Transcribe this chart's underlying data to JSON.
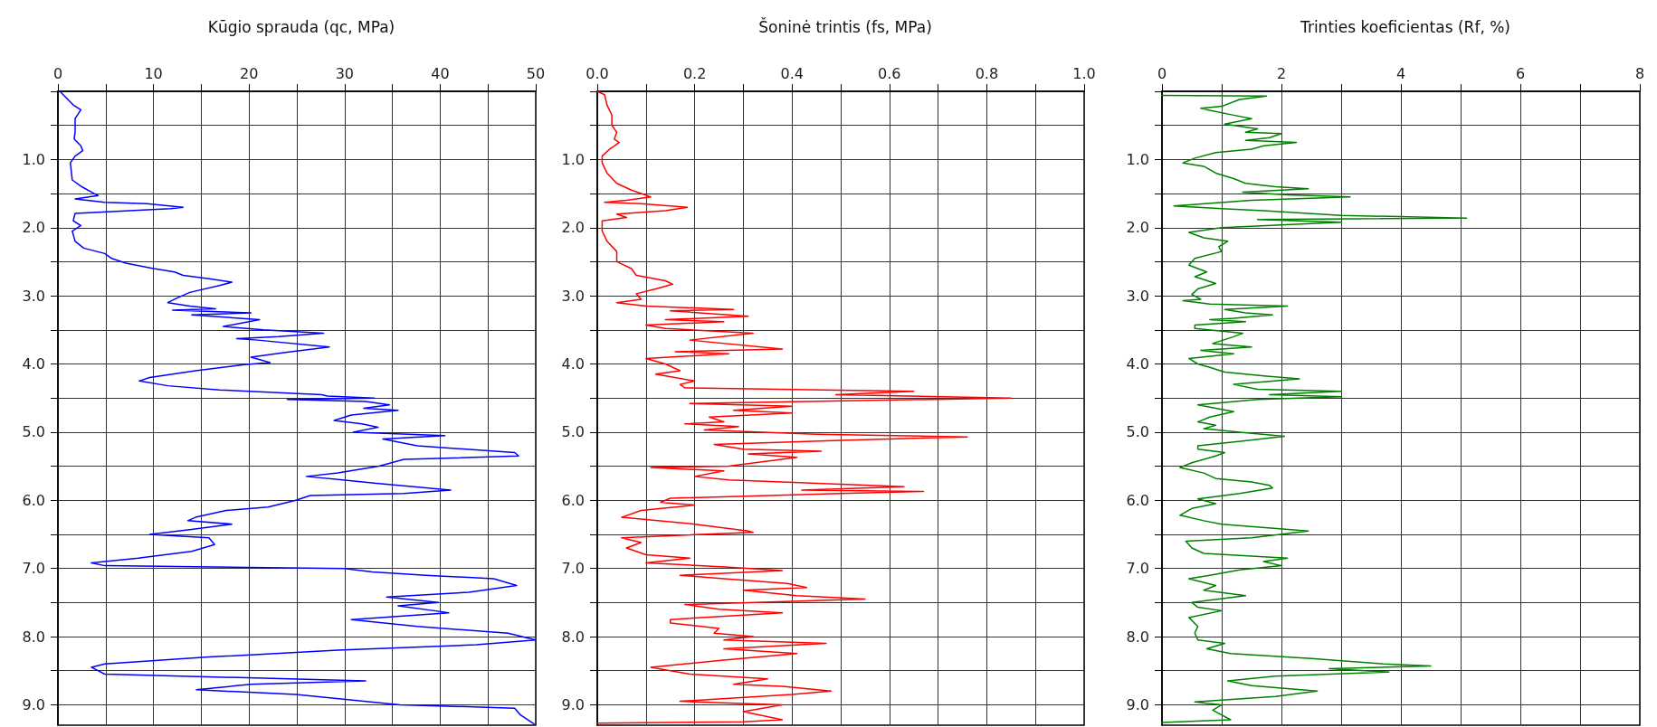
{
  "chart_data": [
    {
      "type": "line",
      "title": "Kūgio sprauda (qc, MPa)",
      "xlim": [
        0,
        50
      ],
      "xticks": [
        0,
        {
          "value": 5,
          "label": null
        },
        10,
        {
          "value": 15,
          "label": null
        },
        20,
        {
          "value": 25,
          "label": null
        },
        30,
        {
          "value": 35,
          "label": null
        },
        40,
        {
          "value": 45,
          "label": null
        },
        50
      ],
      "ylim": [
        9.3,
        0
      ],
      "yticks": [
        {
          "value": 0,
          "label": null
        },
        {
          "value": 0.5,
          "label": null
        },
        {
          "value": 1,
          "label": "1.0"
        },
        {
          "value": 1.5,
          "label": null
        },
        {
          "value": 2,
          "label": "2.0"
        },
        {
          "value": 2.5,
          "label": null
        },
        {
          "value": 3,
          "label": "3.0"
        },
        {
          "value": 3.5,
          "label": null
        },
        {
          "value": 4,
          "label": "4.0"
        },
        {
          "value": 4.5,
          "label": null
        },
        {
          "value": 5,
          "label": "5.0"
        },
        {
          "value": 5.5,
          "label": null
        },
        {
          "value": 6,
          "label": "6.0"
        },
        {
          "value": 6.5,
          "label": null
        },
        {
          "value": 7,
          "label": "7.0"
        },
        {
          "value": 7.5,
          "label": null
        },
        {
          "value": 8,
          "label": "8.0"
        },
        {
          "value": 8.5,
          "label": null
        },
        {
          "value": 9,
          "label": "9.0"
        }
      ],
      "grid": true,
      "marker": "none",
      "line_style": "solid",
      "series": [
        {
          "color": "#0000ff",
          "x": [
            0.2,
            0.9,
            1.6,
            2.4,
            1.8,
            1.8,
            1.7,
            2.4,
            2.6,
            1.8,
            1.3,
            1.5,
            2.5,
            3.8,
            4.2,
            1.8,
            4.9,
            9.3,
            13.1,
            11.8,
            1.8,
            1.6,
            2.4,
            1.5,
            1.8,
            2.7,
            4.9,
            5.6,
            7.1,
            10,
            12.2,
            13.1,
            15.8,
            18.2,
            16.9,
            13.8,
            12.2,
            11.5,
            13.8,
            16.5,
            12,
            20.2,
            14,
            21.1,
            17.3,
            21.5,
            27.8,
            23.1,
            18.7,
            20.9,
            28.4,
            23.8,
            20.2,
            22.2,
            19.5,
            14.4,
            9.6,
            8.5,
            11.5,
            16.9,
            27.6,
            28.2,
            33.1,
            24,
            32.2,
            34.7,
            32,
            35.6,
            30.7,
            28.9,
            31.8,
            33.5,
            30.9,
            40.5,
            34,
            37.6,
            47.8,
            48.2,
            36.2,
            33.6,
            29.3,
            26,
            29.8,
            33.3,
            41.1,
            36.2,
            26.4,
            24.9,
            22,
            17.6,
            14.4,
            13.6,
            18.2,
            13.8,
            9.6,
            15.8,
            16.4,
            14,
            8.4,
            3.5,
            4.9,
            30,
            32.9,
            38.5,
            45.6,
            48,
            43,
            34.4,
            39.8,
            35.6,
            40.9,
            35.8,
            30.7,
            37.6,
            47.1,
            50,
            43.8,
            29.3,
            15.8,
            4.9,
            3.5,
            4.9,
            32.2,
            20.2,
            14.5,
            24.9,
            35.8,
            47.8,
            48.4,
            49.8
          ],
          "values": [
            0,
            0.1,
            0.2,
            0.27,
            0.4,
            0.6,
            0.7,
            0.8,
            0.87,
            0.95,
            1.05,
            1.3,
            1.4,
            1.5,
            1.53,
            1.58,
            1.63,
            1.65,
            1.7,
            1.72,
            1.79,
            1.9,
            1.97,
            2.05,
            2.2,
            2.3,
            2.38,
            2.45,
            2.52,
            2.6,
            2.65,
            2.7,
            2.75,
            2.8,
            2.85,
            2.95,
            3.05,
            3.1,
            3.15,
            3.19,
            3.21,
            3.25,
            3.28,
            3.35,
            3.45,
            3.5,
            3.55,
            3.6,
            3.63,
            3.65,
            3.75,
            3.83,
            3.9,
            3.98,
            4.01,
            4.1,
            4.2,
            4.25,
            4.32,
            4.38,
            4.45,
            4.47,
            4.5,
            4.52,
            4.55,
            4.6,
            4.65,
            4.68,
            4.75,
            4.83,
            4.88,
            4.93,
            5,
            5.05,
            5.1,
            5.2,
            5.3,
            5.35,
            5.4,
            5.5,
            5.6,
            5.65,
            5.7,
            5.75,
            5.85,
            5.9,
            5.93,
            6,
            6.1,
            6.15,
            6.25,
            6.3,
            6.35,
            6.43,
            6.5,
            6.55,
            6.65,
            6.75,
            6.85,
            6.92,
            6.96,
            7,
            7.05,
            7.1,
            7.15,
            7.25,
            7.35,
            7.42,
            7.5,
            7.55,
            7.65,
            7.7,
            7.75,
            7.85,
            7.95,
            8.05,
            8.12,
            8.2,
            8.3,
            8.4,
            8.45,
            8.55,
            8.65,
            8.7,
            8.78,
            8.85,
            9,
            9.05,
            9.15,
            9.28
          ]
        }
      ]
    },
    {
      "type": "line",
      "title": "Šoninė trintis (fs, MPa)",
      "xlim": [
        0,
        1
      ],
      "xticks": [
        {
          "value": 0,
          "label": "0.0"
        },
        {
          "value": 0.1,
          "label": null
        },
        {
          "value": 0.2,
          "label": "0.2"
        },
        {
          "value": 0.3,
          "label": null
        },
        {
          "value": 0.4,
          "label": "0.4"
        },
        {
          "value": 0.5,
          "label": null
        },
        {
          "value": 0.6,
          "label": "0.6"
        },
        {
          "value": 0.7,
          "label": null
        },
        {
          "value": 0.8,
          "label": "0.8"
        },
        {
          "value": 0.9,
          "label": null
        },
        {
          "value": 1,
          "label": "1.0"
        }
      ],
      "ylim": [
        9.3,
        0
      ],
      "yticks": [
        {
          "value": 0,
          "label": null
        },
        {
          "value": 0.5,
          "label": null
        },
        {
          "value": 1,
          "label": "1.0"
        },
        {
          "value": 1.5,
          "label": null
        },
        {
          "value": 2,
          "label": "2.0"
        },
        {
          "value": 2.5,
          "label": null
        },
        {
          "value": 3,
          "label": "3.0"
        },
        {
          "value": 3.5,
          "label": null
        },
        {
          "value": 4,
          "label": "4.0"
        },
        {
          "value": 4.5,
          "label": null
        },
        {
          "value": 5,
          "label": "5.0"
        },
        {
          "value": 5.5,
          "label": null
        },
        {
          "value": 6,
          "label": "6.0"
        },
        {
          "value": 6.5,
          "label": null
        },
        {
          "value": 7,
          "label": "7.0"
        },
        {
          "value": 7.5,
          "label": null
        },
        {
          "value": 8,
          "label": "8.0"
        },
        {
          "value": 8.5,
          "label": null
        },
        {
          "value": 9,
          "label": "9.0"
        }
      ],
      "grid": true,
      "marker": "none",
      "line_style": "solid",
      "series": [
        {
          "color": "#ff0000",
          "x": [
            0,
            0.015,
            0.02,
            0.03,
            0.03,
            0.04,
            0.035,
            0.045,
            0.025,
            0.01,
            0.01,
            0.02,
            0.04,
            0.07,
            0.09,
            0.11,
            0.06,
            0.015,
            0.09,
            0.185,
            0.14,
            0.04,
            0.06,
            0.01,
            0.01,
            0.02,
            0.04,
            0.04,
            0.07,
            0.08,
            0.14,
            0.155,
            0.12,
            0.08,
            0.09,
            0.04,
            0.1,
            0.28,
            0.15,
            0.31,
            0.14,
            0.26,
            0.1,
            0.14,
            0.32,
            0.19,
            0.38,
            0.16,
            0.27,
            0.1,
            0.14,
            0.17,
            0.12,
            0.2,
            0.17,
            0.18,
            0.65,
            0.49,
            0.85,
            0.43,
            0.19,
            0.4,
            0.28,
            0.4,
            0.23,
            0.26,
            0.18,
            0.29,
            0.22,
            0.45,
            0.76,
            0.5,
            0.24,
            0.3,
            0.46,
            0.31,
            0.41,
            0.27,
            0.11,
            0.26,
            0.2,
            0.27,
            0.56,
            0.63,
            0.42,
            0.67,
            0.5,
            0.15,
            0.13,
            0.2,
            0.09,
            0.05,
            0.2,
            0.31,
            0.32,
            0.05,
            0.09,
            0.06,
            0.1,
            0.19,
            0.1,
            0.27,
            0.38,
            0.17,
            0.26,
            0.39,
            0.43,
            0.3,
            0.41,
            0.55,
            0.18,
            0.25,
            0.38,
            0.15,
            0.15,
            0.25,
            0.24,
            0.32,
            0.26,
            0.47,
            0.26,
            0.41,
            0.25,
            0.11,
            0.19,
            0.35,
            0.28,
            0.38,
            0.48,
            0.4,
            0.17,
            0.38,
            0.3,
            0.38,
            0.3,
            0
          ],
          "values": [
            0,
            0.05,
            0.2,
            0.35,
            0.5,
            0.6,
            0.7,
            0.75,
            0.85,
            0.95,
            1.05,
            1.2,
            1.35,
            1.45,
            1.5,
            1.55,
            1.6,
            1.63,
            1.65,
            1.7,
            1.75,
            1.8,
            1.85,
            1.9,
            2.05,
            2.2,
            2.35,
            2.5,
            2.6,
            2.7,
            2.78,
            2.83,
            2.9,
            2.97,
            3.05,
            3.1,
            3.15,
            3.2,
            3.22,
            3.3,
            3.35,
            3.38,
            3.43,
            3.48,
            3.55,
            3.65,
            3.78,
            3.82,
            3.85,
            3.92,
            4,
            4.1,
            4.15,
            4.25,
            4.3,
            4.35,
            4.4,
            4.45,
            4.5,
            4.55,
            4.58,
            4.62,
            4.68,
            4.72,
            4.78,
            4.85,
            4.88,
            4.92,
            4.97,
            5.03,
            5.07,
            5.12,
            5.18,
            5.25,
            5.28,
            5.32,
            5.37,
            5.5,
            5.52,
            5.57,
            5.65,
            5.7,
            5.78,
            5.8,
            5.85,
            5.87,
            5.9,
            5.97,
            6.03,
            6.07,
            6.15,
            6.25,
            6.35,
            6.45,
            6.47,
            6.55,
            6.62,
            6.7,
            6.8,
            6.85,
            6.92,
            6.98,
            7.03,
            7.1,
            7.15,
            7.22,
            7.28,
            7.32,
            7.4,
            7.45,
            7.53,
            7.6,
            7.65,
            7.75,
            7.8,
            7.88,
            7.95,
            8,
            8.05,
            8.1,
            8.18,
            8.25,
            8.35,
            8.45,
            8.55,
            8.62,
            8.7,
            8.73,
            8.8,
            8.85,
            8.95,
            9,
            9.1,
            9.22,
            9.25,
            9.27
          ]
        }
      ]
    },
    {
      "type": "line",
      "title": "Trinties koeficientas (Rf, %)",
      "xlim": [
        0,
        8
      ],
      "xticks": [
        0,
        {
          "value": 1,
          "label": null
        },
        2,
        {
          "value": 3,
          "label": null
        },
        4,
        {
          "value": 5,
          "label": null
        },
        6,
        {
          "value": 7,
          "label": null
        },
        8
      ],
      "ylim": [
        9.3,
        0
      ],
      "yticks": [
        {
          "value": 0,
          "label": null
        },
        {
          "value": 0.5,
          "label": null
        },
        {
          "value": 1,
          "label": "1.0"
        },
        {
          "value": 1.5,
          "label": null
        },
        {
          "value": 2,
          "label": "2.0"
        },
        {
          "value": 2.5,
          "label": null
        },
        {
          "value": 3,
          "label": "3.0"
        },
        {
          "value": 3.5,
          "label": null
        },
        {
          "value": 4,
          "label": "4.0"
        },
        {
          "value": 4.5,
          "label": null
        },
        {
          "value": 5,
          "label": "5.0"
        },
        {
          "value": 5.5,
          "label": null
        },
        {
          "value": 6,
          "label": "6.0"
        },
        {
          "value": 6.5,
          "label": null
        },
        {
          "value": 7,
          "label": "7.0"
        },
        {
          "value": 7.5,
          "label": null
        },
        {
          "value": 8,
          "label": "8.0"
        },
        {
          "value": 8.5,
          "label": null
        },
        {
          "value": 9,
          "label": "9.0"
        }
      ],
      "grid": true,
      "marker": "none",
      "line_style": "solid",
      "series": [
        {
          "color": "#008000",
          "x": [
            0,
            1.75,
            1.3,
            1,
            0.65,
            0.8,
            1.2,
            1.5,
            1.05,
            1.6,
            1.4,
            2,
            1.8,
            1.4,
            2.25,
            1.7,
            1.5,
            0.9,
            0.55,
            0.35,
            0.7,
            0.9,
            1.2,
            1.4,
            1.9,
            2.45,
            1.35,
            2.1,
            3.15,
            1.5,
            0.2,
            1,
            1.7,
            3,
            5.1,
            1.6,
            3,
            1,
            0.45,
            0.7,
            1.1,
            0.95,
            1,
            0.55,
            0.45,
            0.75,
            0.55,
            0.9,
            0.6,
            0.5,
            0.65,
            0.35,
            0.8,
            2.1,
            1.05,
            1.4,
            1.85,
            1.2,
            0.8,
            1.4,
            0.55,
            0.55,
            1.35,
            1.2,
            0.85,
            1.5,
            0.65,
            1.2,
            0.45,
            0.6,
            0.8,
            1.05,
            1.75,
            2.3,
            1.2,
            1.6,
            3,
            1.8,
            3,
            1.6,
            0.6,
            0.9,
            1.2,
            0.8,
            0.6,
            0.9,
            0.7,
            1.3,
            2.05,
            1.35,
            0.6,
            0.6,
            1.05,
            0.9,
            0.5,
            0.3,
            0.7,
            0.9,
            1.5,
            1.8,
            1.85,
            1.3,
            0.6,
            0.9,
            0.5,
            0.3,
            0.7,
            1,
            2.45,
            1.5,
            0.4,
            0.5,
            0.7,
            2.1,
            1.7,
            2,
            1.3,
            0.8,
            0.45,
            0.9,
            0.7,
            1.4,
            0.5,
            0.6,
            1,
            0.45,
            0.6,
            0.55,
            0.6,
            1.05,
            0.75,
            1.15,
            2.5,
            3.7,
            4.5,
            2.8,
            3.8,
            1.9,
            1.1,
            1.5,
            2.6,
            1.9,
            0.55,
            1,
            0.85,
            1.15,
            0
          ],
          "values": [
            0.06,
            0.07,
            0.12,
            0.22,
            0.25,
            0.28,
            0.35,
            0.4,
            0.48,
            0.55,
            0.6,
            0.62,
            0.68,
            0.72,
            0.75,
            0.8,
            0.85,
            0.9,
            0.98,
            1.05,
            1.1,
            1.2,
            1.28,
            1.35,
            1.4,
            1.43,
            1.48,
            1.52,
            1.55,
            1.6,
            1.68,
            1.72,
            1.75,
            1.82,
            1.86,
            1.88,
            1.92,
            2,
            2.07,
            2.15,
            2.2,
            2.28,
            2.35,
            2.45,
            2.55,
            2.65,
            2.72,
            2.82,
            2.9,
            2.98,
            3.05,
            3.07,
            3.12,
            3.15,
            3.2,
            3.25,
            3.28,
            3.33,
            3.35,
            3.38,
            3.43,
            3.48,
            3.55,
            3.6,
            3.7,
            3.75,
            3.8,
            3.85,
            3.92,
            4,
            4.05,
            4.12,
            4.18,
            4.22,
            4.3,
            4.37,
            4.4,
            4.45,
            4.48,
            4.52,
            4.6,
            4.65,
            4.7,
            4.78,
            4.85,
            4.9,
            4.95,
            5,
            5.06,
            5.13,
            5.2,
            5.25,
            5.3,
            5.35,
            5.45,
            5.52,
            5.6,
            5.68,
            5.73,
            5.78,
            5.82,
            5.9,
            5.98,
            6.05,
            6.12,
            6.22,
            6.3,
            6.35,
            6.45,
            6.55,
            6.6,
            6.7,
            6.78,
            6.85,
            6.9,
            6.96,
            7.02,
            7.1,
            7.15,
            7.25,
            7.32,
            7.4,
            7.5,
            7.57,
            7.62,
            7.72,
            7.85,
            7.95,
            8.05,
            8.1,
            8.18,
            8.25,
            8.32,
            8.4,
            8.43,
            8.47,
            8.52,
            8.58,
            8.65,
            8.72,
            8.8,
            8.88,
            8.96,
            9,
            9.08,
            9.22,
            9.26
          ]
        }
      ]
    }
  ]
}
